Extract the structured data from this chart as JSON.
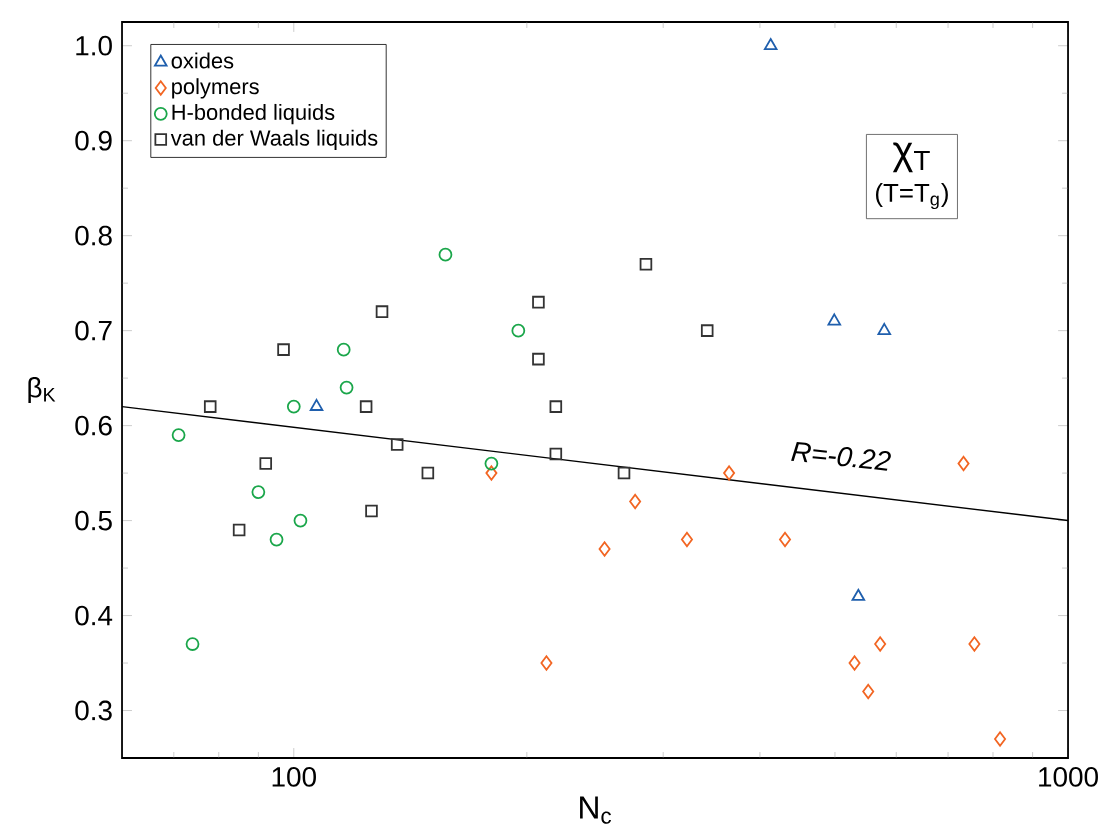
{
  "chart_data": {
    "type": "scatter",
    "xlabel": "N$_{c}$",
    "ylabel": "β$_{K}$",
    "log": "x",
    "legend": "top left",
    "xlim": [
      60,
      1000
    ],
    "ylim": [
      0.25,
      1.025
    ],
    "xticks": [
      {
        "value": 70,
        "label": null
      },
      {
        "value": 80,
        "label": null
      },
      {
        "value": 90,
        "label": null
      },
      100,
      {
        "value": 200,
        "label": null
      },
      {
        "value": 300,
        "label": null
      },
      {
        "value": 400,
        "label": null
      },
      {
        "value": 500,
        "label": null
      },
      {
        "value": 600,
        "label": null
      },
      {
        "value": 700,
        "label": null
      },
      {
        "value": 800,
        "label": null
      },
      {
        "value": 900,
        "label": null
      },
      1000
    ],
    "yticks": [
      {
        "value": 0.3,
        "label": "0.3"
      },
      {
        "value": 0.35,
        "label": null
      },
      {
        "value": 0.4,
        "label": "0.4"
      },
      {
        "value": 0.45,
        "label": null
      },
      {
        "value": 0.5,
        "label": "0.5"
      },
      {
        "value": 0.55,
        "label": null
      },
      {
        "value": 0.6,
        "label": "0.6"
      },
      {
        "value": 0.65,
        "label": null
      },
      {
        "value": 0.7,
        "label": "0.7"
      },
      {
        "value": 0.75,
        "label": null
      },
      {
        "value": 0.8,
        "label": "0.8"
      },
      {
        "value": 0.85,
        "label": null
      },
      {
        "value": 0.9,
        "label": "0.9"
      },
      {
        "value": 0.95,
        "label": null
      },
      {
        "value": 1.0,
        "label": "1.0"
      }
    ],
    "series": [
      {
        "name": "oxides",
        "color": "#1f5fad",
        "marker": "triangle",
        "x": [
          107,
          413,
          499,
          536,
          579
        ],
        "values": [
          0.62,
          1.0,
          0.71,
          0.42,
          0.7
        ]
      },
      {
        "name": "polymers",
        "color": "#f26522",
        "marker": "diamond",
        "x": [
          180,
          212,
          252,
          276,
          322,
          365,
          431,
          530,
          552,
          572,
          733,
          757,
          817
        ],
        "values": [
          0.55,
          0.35,
          0.47,
          0.52,
          0.48,
          0.55,
          0.48,
          0.35,
          0.32,
          0.37,
          0.56,
          0.37,
          0.27
        ]
      },
      {
        "name": "H-bonded liquids",
        "color": "#1aa64a",
        "marker": "circle",
        "x": [
          71,
          74,
          90,
          95,
          100,
          102,
          116,
          117,
          157,
          180,
          195
        ],
        "values": [
          0.59,
          0.37,
          0.53,
          0.48,
          0.62,
          0.5,
          0.68,
          0.64,
          0.78,
          0.56,
          0.7
        ]
      },
      {
        "name": "van der Waals liquids",
        "color": "#333333",
        "marker": "square",
        "x": [
          78,
          85,
          92,
          97,
          124,
          126,
          130,
          136,
          149,
          207,
          207,
          218,
          218,
          267,
          285,
          342
        ],
        "values": [
          0.62,
          0.49,
          0.56,
          0.68,
          0.62,
          0.51,
          0.72,
          0.58,
          0.55,
          0.73,
          0.67,
          0.62,
          0.57,
          0.55,
          0.77,
          0.7
        ]
      },
      {
        "type": "line",
        "color": "#000000",
        "marker": "none",
        "line_style": "solid",
        "x": [
          60,
          1000
        ],
        "values": [
          0.62,
          0.5
        ]
      }
    ],
    "annotations": [
      "R=-0.22",
      "χ$_{T}$",
      "(T=T$_{g}$)"
    ]
  }
}
